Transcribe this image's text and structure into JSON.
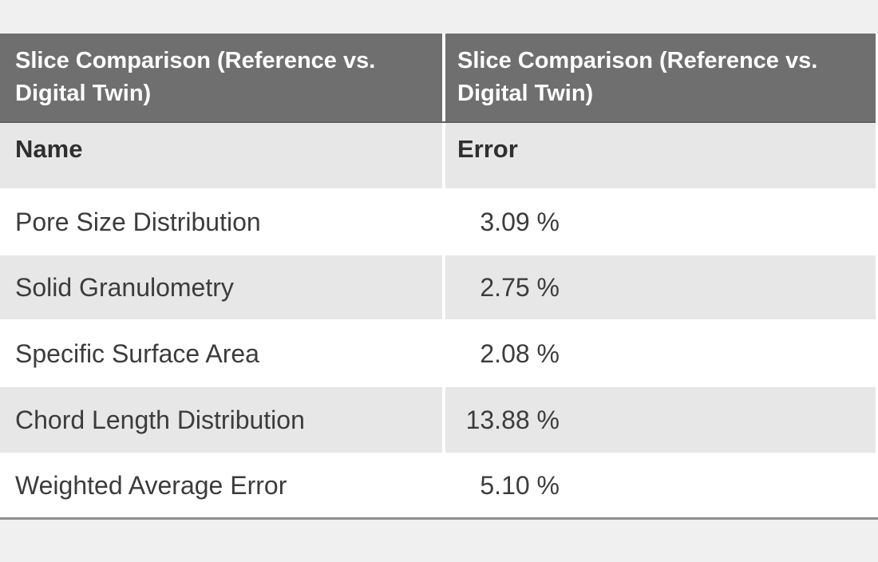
{
  "table": {
    "title_col1": "Slice Comparison (Reference vs. Digital Twin)",
    "title_col2": "Slice Comparison (Reference vs. Digital Twin)",
    "col_headers": {
      "name": "Name",
      "error": "Error"
    },
    "rows": [
      {
        "name": "Pore Size Distribution",
        "error": "3.09 %"
      },
      {
        "name": "Solid Granulometry",
        "error": "2.75 %"
      },
      {
        "name": "Specific Surface Area",
        "error": "2.08 %"
      },
      {
        "name": "Chord Length Distribution",
        "error": "13.88 %"
      },
      {
        "name": "Weighted Average Error",
        "error": "5.10 %"
      }
    ],
    "colors": {
      "header_bg": "#6f6f6f",
      "header_text": "#ffffff",
      "subheader_bg": "#e7e7e7",
      "row_alt_bg": "#e7e7e7",
      "row_bg": "#ffffff",
      "page_bg": "#f0f0f0",
      "bottom_rule": "#8f8f8f",
      "data_text": "#3c3c3c"
    }
  },
  "chart_data": {
    "type": "table",
    "title": "Slice Comparison (Reference vs. Digital Twin)",
    "columns": [
      "Name",
      "Error"
    ],
    "rows": [
      [
        "Pore Size Distribution",
        "3.09 %"
      ],
      [
        "Solid Granulometry",
        "2.75 %"
      ],
      [
        "Specific Surface Area",
        "2.08 %"
      ],
      [
        "Chord Length Distribution",
        "13.88 %"
      ],
      [
        "Weighted Average Error",
        "5.10 %"
      ]
    ],
    "numeric_errors_percent": {
      "Pore Size Distribution": 3.09,
      "Solid Granulometry": 2.75,
      "Specific Surface Area": 2.08,
      "Chord Length Distribution": 13.88,
      "Weighted Average Error": 5.1
    },
    "layout_hints": {
      "header_repeated_per_column": true,
      "alternating_row_shading": true,
      "values_right_aligned_on_percent": true
    }
  }
}
